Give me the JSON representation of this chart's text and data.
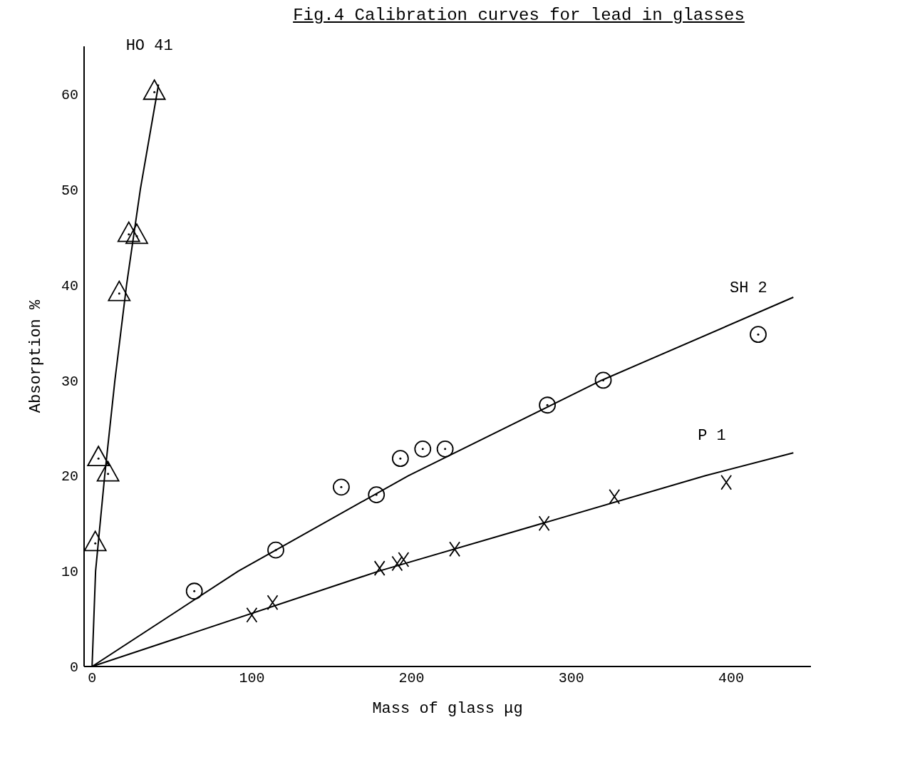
{
  "chart_data": {
    "type": "scatter",
    "title": "Fig.4  Calibration curves for lead in glasses",
    "xlabel": "Mass of glass μg",
    "ylabel": "Absorption %",
    "xlim": [
      -5,
      450
    ],
    "xticks": [
      0,
      100,
      200,
      300,
      400
    ],
    "ylim": [
      0,
      65
    ],
    "yticks": [
      0,
      10,
      20,
      30,
      40,
      50,
      60
    ],
    "series": [
      {
        "name": "HO 41",
        "marker": "triangle",
        "color": "#000000",
        "x": [
          2,
          4,
          10,
          17,
          23,
          28,
          39
        ],
        "values": [
          12.9,
          21.8,
          20.2,
          39.1,
          45.3,
          45.1,
          60.2
        ]
      },
      {
        "name": "SH 2",
        "marker": "circle",
        "color": "#000000",
        "x": [
          64,
          115,
          156,
          178,
          193,
          207,
          221,
          285,
          320,
          417
        ],
        "values": [
          7.9,
          12.2,
          18.8,
          18.0,
          21.8,
          22.8,
          22.8,
          27.4,
          30.0,
          34.8
        ]
      },
      {
        "name": "P 1",
        "marker": "cross",
        "color": "#000000",
        "x": [
          100,
          113,
          180,
          191,
          195,
          227,
          283,
          327,
          397
        ],
        "values": [
          5.4,
          6.7,
          10.3,
          10.8,
          11.2,
          12.3,
          15.0,
          17.8,
          19.3
        ]
      },
      {
        "type": "line",
        "color": "#000000",
        "x": [
          0,
          2.2,
          7.9,
          14.3,
          21.6,
          30.2,
          41.6
        ],
        "values": [
          0,
          10,
          20,
          30,
          40,
          50,
          61
        ]
      },
      {
        "type": "line",
        "color": "#000000",
        "x": [
          0,
          91.6,
          198,
          319,
          439
        ],
        "values": [
          0,
          10,
          20,
          30,
          38.7
        ]
      },
      {
        "type": "line",
        "color": "#000000",
        "x": [
          0,
          179.6,
          384,
          439
        ],
        "values": [
          0,
          10,
          20,
          22.4
        ]
      }
    ]
  }
}
